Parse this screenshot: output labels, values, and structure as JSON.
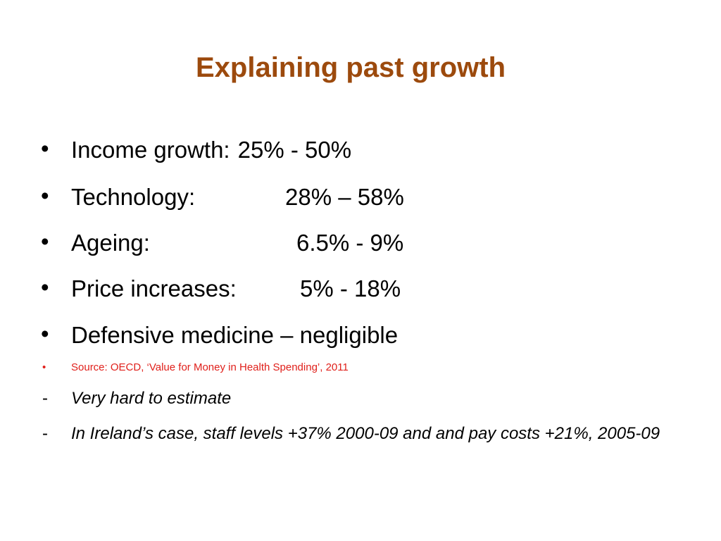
{
  "slide": {
    "title": "Explaining past growth",
    "bullets": [
      {
        "label": "Income growth:",
        "value": "25% - 50%"
      },
      {
        "label": "Technology:",
        "value": "28% – 58%"
      },
      {
        "label": "Ageing:",
        "value": "6.5% - 9%"
      },
      {
        "label": "Price increases:",
        "value": "5% - 18%"
      },
      {
        "label": "Defensive medicine – negligible",
        "value": ""
      }
    ],
    "bullet_symbol": "•",
    "source": "Source:  OECD, ‘Value for Money in Health Spending’, 2011",
    "note_symbol": "-",
    "notes": [
      "Very hard to estimate",
      "In Ireland’s case, staff levels +37% 2000-09 and and pay costs +21%, 2005-09"
    ]
  },
  "colors": {
    "title": "#9c4a0d",
    "source": "#e0201b",
    "text": "#000000",
    "background": "#ffffff"
  }
}
